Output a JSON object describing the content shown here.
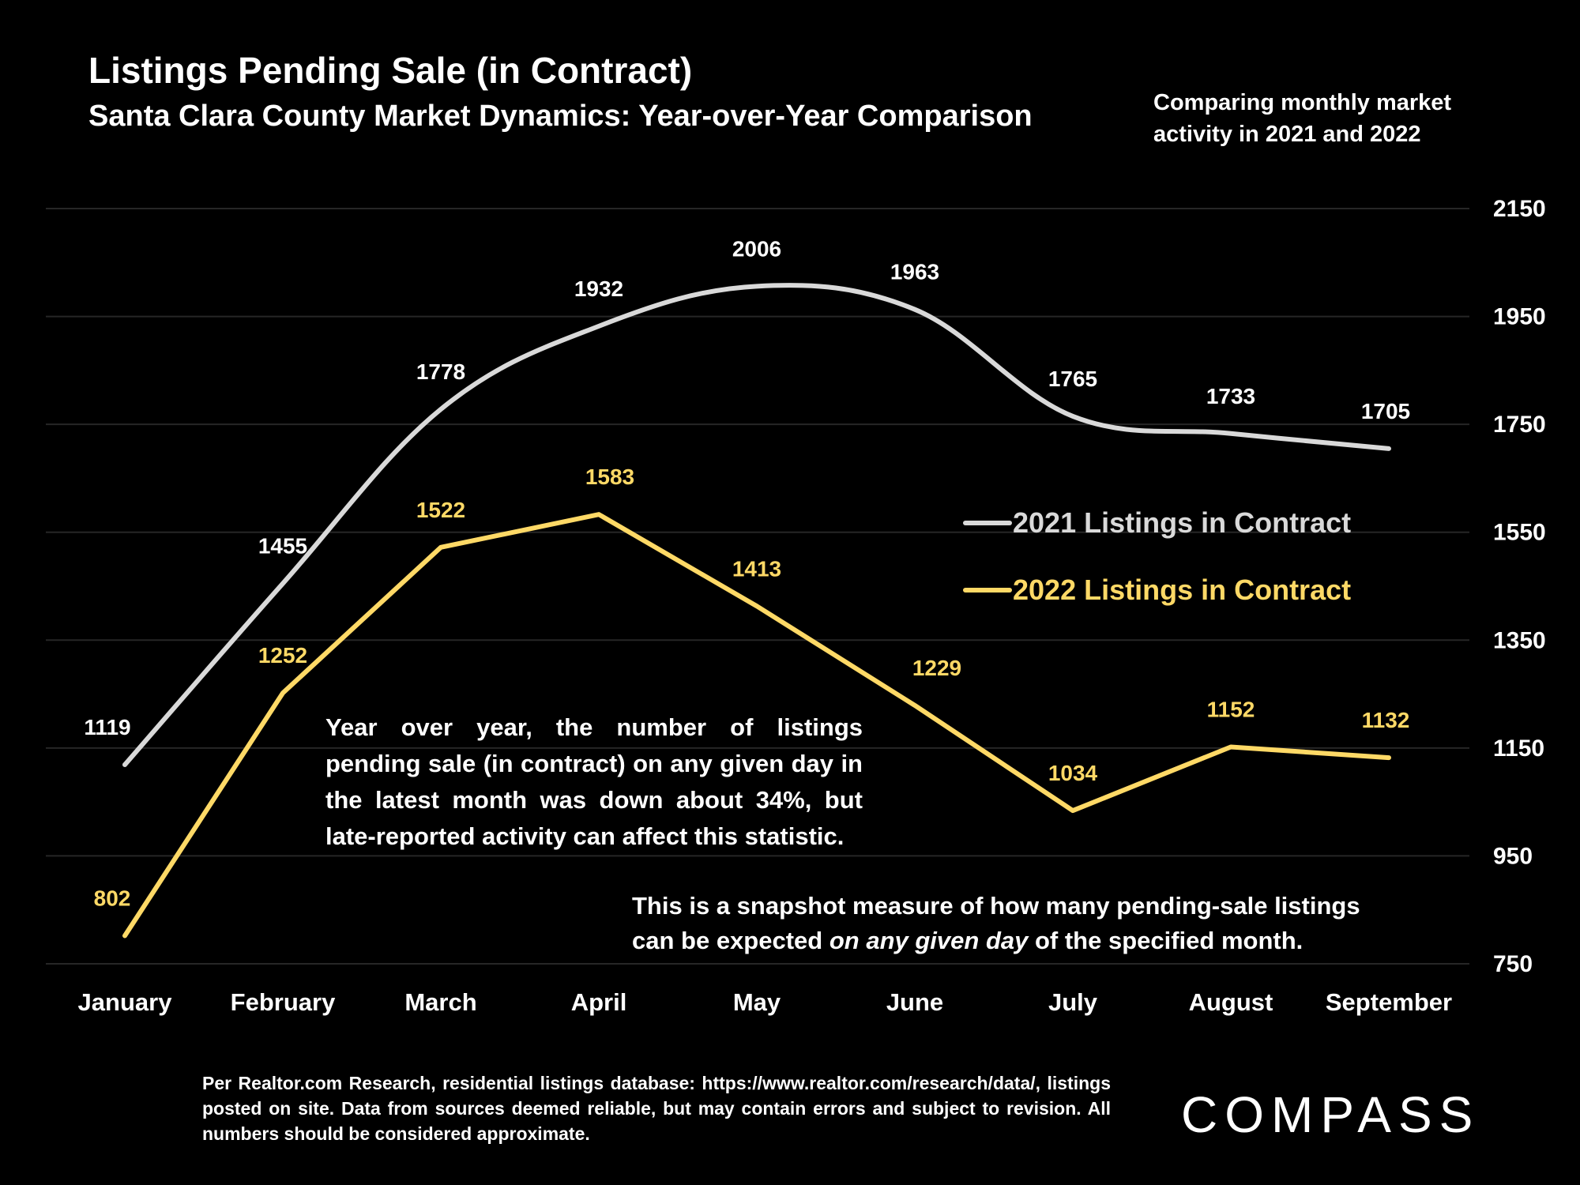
{
  "title": "Listings Pending Sale (in Contract)",
  "subtitle": "Santa Clara County Market Dynamics: Year-over-Year Comparison",
  "side_note": "Comparing monthly market activity in 2021 and 2022",
  "annotation_main": "Year over year, the number of listings pending sale (in contract) on any given day in the latest month was down about 34%, but late-reported activity can affect this statistic.",
  "annotation_snapshot": {
    "before": "This is a snapshot measure of how many pending-sale listings can be expected ",
    "emphasis": "on any given day",
    "after": " of the specified month."
  },
  "footer": "Per Realtor.com Research, residential listings database:  https://www.realtor.com/research/data/, listings posted on site. Data from sources deemed reliable, but may contain errors and subject to revision. All numbers should be considered approximate.",
  "logo": "COMPASS",
  "colors": {
    "background": "#000000",
    "series_2021": "#d9d9d9",
    "series_2022": "#ffd966",
    "grid": "#262626"
  },
  "chart_data": {
    "type": "line",
    "categories": [
      "January",
      "February",
      "March",
      "April",
      "May",
      "June",
      "July",
      "August",
      "September"
    ],
    "series": [
      {
        "name": "2021 Listings in Contract",
        "values": [
          1119,
          1455,
          1778,
          1932,
          2006,
          1963,
          1765,
          1733,
          1705
        ],
        "smooth": true
      },
      {
        "name": "2022 Listings in Contract",
        "values": [
          802,
          1252,
          1522,
          1583,
          1413,
          1229,
          1034,
          1152,
          1132
        ],
        "smooth": false
      }
    ],
    "yticks": [
      750,
      950,
      1150,
      1350,
      1550,
      1750,
      1950,
      2150
    ],
    "ylim": [
      750,
      2150
    ],
    "y_axis_side": "right",
    "grid": true,
    "legend_position": "right-middle",
    "data_labels": true
  }
}
